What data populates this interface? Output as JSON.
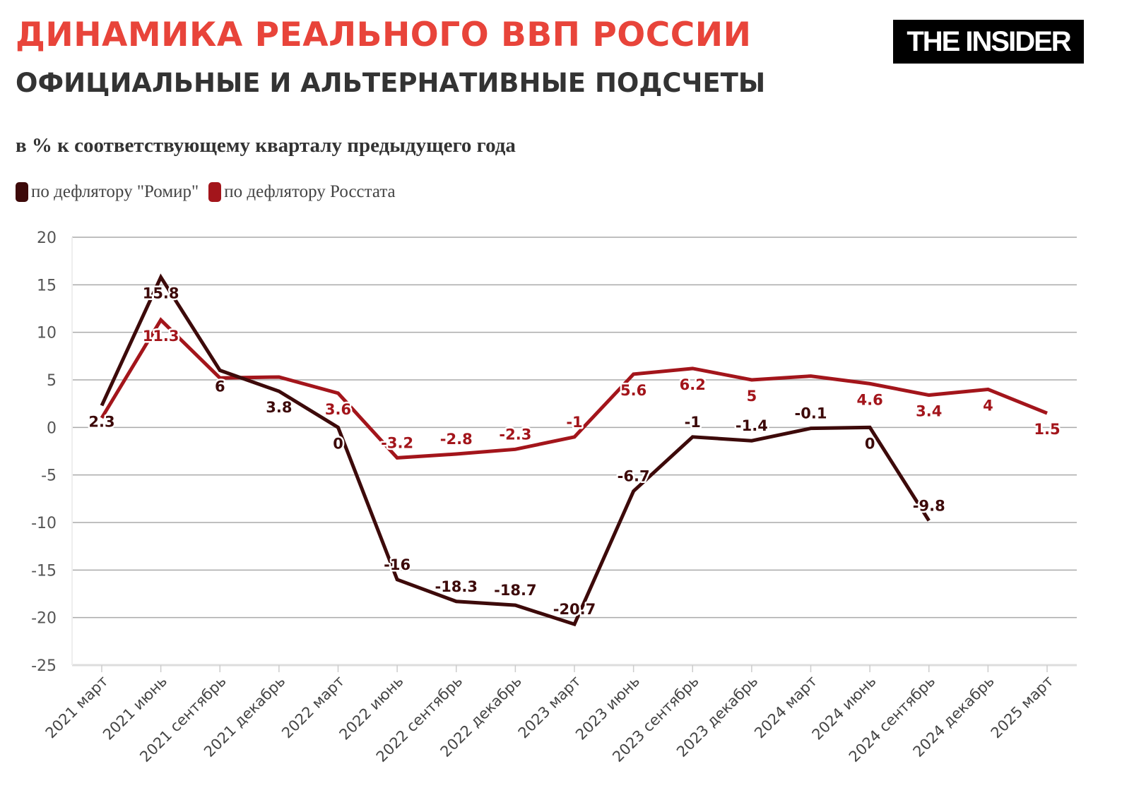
{
  "header": {
    "title": "ДИНАМИКА РЕАЛЬНОГО ВВП РОССИИ",
    "subtitle": "ОФИЦИАЛЬНЫЕ И АЛЬТЕРНАТИВНЫЕ ПОДСЧЕТЫ",
    "unit": "в % к соответствующему кварталу предыдущего года",
    "logo": "THE INSIDER"
  },
  "chart_data": {
    "type": "line",
    "title": "ДИНАМИКА РЕАЛЬНОГО ВВП РОССИИ",
    "subtitle": "ОФИЦИАЛЬНЫЕ И АЛЬТЕРНАТИВНЫЕ ПОДСЧЕТЫ",
    "ylabel": "в % к соответствующему кварталу предыдущего года",
    "ylim": [
      -25,
      20
    ],
    "yticks": [
      20,
      15,
      10,
      5,
      0,
      -5,
      -10,
      -15,
      -20,
      -25
    ],
    "grid": true,
    "legend_placement": "top-left",
    "categories": [
      "2021 март",
      "2021 июнь",
      "2021 сентябрь",
      "2021 декабрь",
      "2022 март",
      "2022 июнь",
      "2022 сентябрь",
      "2022 декабрь",
      "2023 март",
      "2023 июнь",
      "2023 сентябрь",
      "2023 декабрь",
      "2024 март",
      "2024 июнь",
      "2024 сентябрь",
      "2024 декабрь",
      "2025 март"
    ],
    "series": [
      {
        "name": "по дефлятору \"Ромир\"",
        "color": "#3d0a0a",
        "values": [
          2.3,
          15.8,
          6,
          3.8,
          0,
          -16,
          -18.3,
          -18.7,
          -20.7,
          -6.7,
          -1,
          -1.4,
          -0.1,
          0,
          -9.8,
          null,
          null
        ],
        "data_labels": [
          "2.3",
          "15.8",
          "6",
          "3.8",
          "0",
          "-16",
          "-18.3",
          "-18.7",
          "-20.7",
          "-6.7",
          "-1",
          "-1.4",
          "-0.1",
          "0",
          "-9.8",
          null,
          null
        ]
      },
      {
        "name": "по дефлятору Росстата",
        "color": "#a3151b",
        "values": [
          1.0,
          11.3,
          5.2,
          5.3,
          3.6,
          -3.2,
          -2.8,
          -2.3,
          -1,
          5.6,
          6.2,
          5,
          5.4,
          4.6,
          3.4,
          4,
          1.5
        ],
        "data_labels": [
          null,
          "11.3",
          null,
          null,
          "3.6",
          "-3.2",
          "-2.8",
          "-2.3",
          "-1",
          "5.6",
          "6.2",
          "5",
          null,
          "4.6",
          "3.4",
          "4",
          "1.5"
        ]
      }
    ]
  }
}
